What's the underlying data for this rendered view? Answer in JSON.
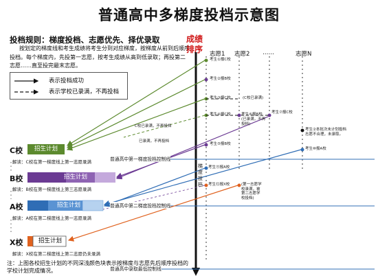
{
  "title": "普通高中多梯度投档示意图",
  "rule_title": "投档规则：梯度投档、志愿优先、择优录取",
  "rule_text": "按划定的梯度线和考生成绩将考生分到对应梯度，按梯度从前到后顺序投档。每个梯度内，先投第一志愿，按考生成绩从高到低录取；再投第二志愿……直至投完最末志愿。",
  "legend": {
    "solid": "表示投档成功",
    "dashed": "表示学校已录满，不再投档"
  },
  "rank_label": "成绩排序",
  "columns": [
    "志愿1",
    "志愿2",
    "……",
    "志愿N"
  ],
  "vertical_label": "梯度投档",
  "schools": [
    {
      "name": "C校",
      "plan": "招生计划",
      "explain": "解读：C校在第一梯度线上第一志愿录满"
    },
    {
      "name": "B校",
      "plan": "招生计划",
      "explain": "解读：B校在第一梯度线上第三志愿录满"
    },
    {
      "name": "A校",
      "plan": "招生计划",
      "explain": "解读：A校在第二梯度线上第一志愿录满"
    },
    {
      "name": "X校",
      "plan": "招生计划",
      "explain": "解读：X校在第二梯度线上第二志愿仍未录满"
    }
  ],
  "lines": {
    "line1": "普通高中第一梯度投档控制线",
    "line2": "普通高中第二梯度投档控制线",
    "line3": "普通高中录取最低控制线"
  },
  "student_labels": {
    "s1": "考生①报C校",
    "s2": "考生②报B校",
    "s3": "考生③报C校",
    "s4": "考生④报C校",
    "s5": "考生⑤报B校",
    "s6": "考生⑥报B校",
    "s7": "考生⑦报C校",
    "s8": "考生⑧报C校",
    "s9": "考生⑨报B校",
    "s10": "考生⑩报A校",
    "s11": "考生⑪报A校",
    "s12": "考生⑫报X校",
    "s3_note": "(C校已录满)",
    "s8_note": "(已录满，不再投档)",
    "s12_note": "(第一志愿学校录满，被第二志愿学校投档)",
    "n_note": "考生②本批次未计划投档志愿不合理，未录取。",
    "c_full": "C校已录满，不再投档",
    "c_full2": "已录满，不再投档"
  },
  "note": "注：上图各校招生计划的不同深浅颜色块表示按梯度与志愿先后顺序投档的学校计划完成情况。",
  "colors": {
    "c_school": "#5c8a2e",
    "b_school": "#6b3a93",
    "a_school": "#2f6db5",
    "x_school": "#e0621f",
    "rank": "#d01818"
  }
}
